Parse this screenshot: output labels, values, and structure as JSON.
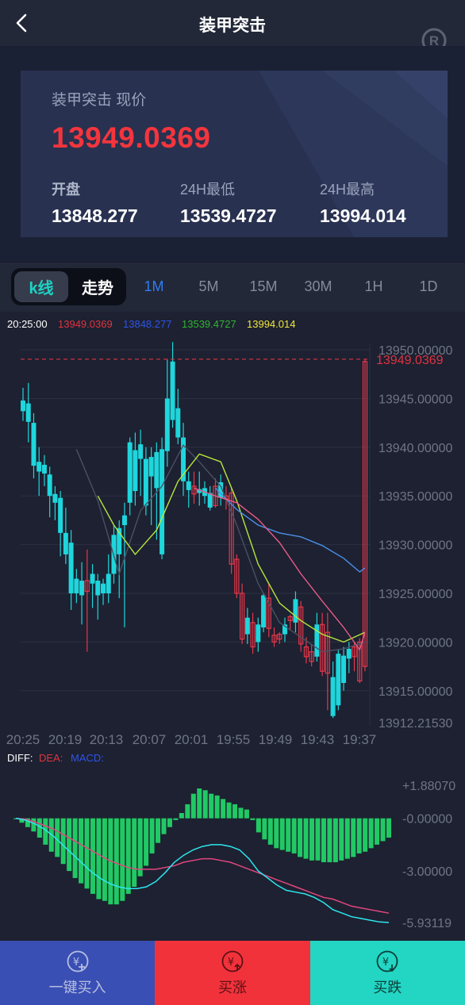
{
  "header": {
    "title": "装甲突击",
    "back_icon": "chevron-left-icon",
    "logo_icon": "registered-mark-icon"
  },
  "quote": {
    "label": "装甲突击 现价",
    "price": "13949.0369",
    "open_label": "开盘",
    "open_value": "13848.277",
    "low_label": "24H最低",
    "low_value": "13539.4727",
    "high_label": "24H最高",
    "high_value": "13994.014"
  },
  "tabs": {
    "kline_label": "k线",
    "trend_label": "走势",
    "periods": [
      "1M",
      "5M",
      "15M",
      "30M",
      "1H",
      "1D"
    ],
    "active_period": "1M"
  },
  "chart_data": {
    "type": "candlestick",
    "legend": {
      "time": "20:25:00",
      "values": [
        "13949.0369",
        "13848.277",
        "13539.4727",
        "13994.014"
      ],
      "colors": [
        "#e03340",
        "#2f54e8",
        "#2fb52f",
        "#f0e63c"
      ]
    },
    "price_axis": [
      "13950.00000",
      "13945.00000",
      "13940.00000",
      "13935.00000",
      "13930.00000",
      "13925.00000",
      "13920.00000",
      "13915.00000",
      "13912.21530"
    ],
    "price_range": [
      13912.2153,
      13950.0
    ],
    "last_price": "13949.0369",
    "time_axis": [
      "20:25",
      "20:19",
      "20:13",
      "20:07",
      "20:01",
      "19:55",
      "19:49",
      "19:43",
      "19:37"
    ],
    "candles": [
      [
        13943.7,
        13944.8,
        13946.1,
        13942.7
      ],
      [
        13942.6,
        13944.5,
        13946.6,
        13940.5
      ],
      [
        13938.1,
        13942.5,
        13943.5,
        13936.8
      ],
      [
        13937.5,
        13938.5,
        13940.0,
        13935.0
      ],
      [
        13937.3,
        13938.2,
        13939.2,
        13936.0
      ],
      [
        13935.0,
        13937.2,
        13938.0,
        13932.8
      ],
      [
        13934.3,
        13935.2,
        13936.0,
        13932.5
      ],
      [
        13931.2,
        13934.8,
        13935.5,
        13928.8
      ],
      [
        13929.0,
        13931.2,
        13933.8,
        13928.0
      ],
      [
        13925.0,
        13930.2,
        13931.5,
        13923.3
      ],
      [
        13925.0,
        13926.5,
        13927.5,
        13924.0
      ],
      [
        13924.8,
        13926.3,
        13928.2,
        13921.8
      ],
      [
        13926.3,
        13925.2,
        13929.5,
        13919.0
      ],
      [
        13926.0,
        13927.0,
        13928.0,
        13923.5
      ],
      [
        13924.8,
        13926.3,
        13927.0,
        13922.3
      ],
      [
        13925.0,
        13926.0,
        13926.5,
        13923.8
      ],
      [
        13925.0,
        13927.0,
        13929.0,
        13924.0
      ],
      [
        13927.0,
        13931.0,
        13932.0,
        13926.0
      ],
      [
        13929.0,
        13931.7,
        13932.5,
        13924.5
      ],
      [
        13932.0,
        13933.0,
        13934.3,
        13921.5
      ],
      [
        13934.3,
        13940.5,
        13941.0,
        13933.0
      ],
      [
        13935.5,
        13939.7,
        13941.5,
        13934.0
      ],
      [
        13938.8,
        13940.3,
        13941.8,
        13935.0
      ],
      [
        13934.0,
        13938.8,
        13940.0,
        13933.0
      ],
      [
        13937.0,
        13939.0,
        13940.0,
        13932.0
      ],
      [
        13935.8,
        13939.5,
        13940.5,
        13930.5
      ],
      [
        13929.0,
        13939.8,
        13941.0,
        13928.5
      ],
      [
        13939.6,
        13945.0,
        13949.0,
        13938.0
      ],
      [
        13942.8,
        13948.8,
        13950.8,
        13942.0
      ],
      [
        13941.0,
        13944.0,
        13946.0,
        13940.3
      ],
      [
        13936.5,
        13941.0,
        13942.5,
        13935.0
      ],
      [
        13935.6,
        13936.5,
        13937.5,
        13933.8
      ],
      [
        13936.0,
        13935.2,
        13937.5,
        13934.2
      ],
      [
        13935.3,
        13935.7,
        13937.5,
        13934.0
      ],
      [
        13935.0,
        13935.8,
        13936.5,
        13934.2
      ],
      [
        13933.8,
        13935.3,
        13936.0,
        13933.5
      ],
      [
        13936.0,
        13934.0,
        13936.8,
        13933.8
      ],
      [
        13934.8,
        13936.4,
        13937.2,
        13934.0
      ],
      [
        13935.0,
        13934.7,
        13936.0,
        13933.6
      ],
      [
        13935.3,
        13928.0,
        13935.8,
        13927.0
      ],
      [
        13928.5,
        13925.0,
        13929.0,
        13924.5
      ],
      [
        13925.0,
        13920.3,
        13926.0,
        13919.8
      ],
      [
        13920.8,
        13922.5,
        13923.5,
        13919.8
      ],
      [
        13922.0,
        13919.5,
        13923.0,
        13918.8
      ],
      [
        13920.0,
        13921.8,
        13922.5,
        13919.0
      ],
      [
        13921.5,
        13924.8,
        13925.0,
        13921.0
      ],
      [
        13924.5,
        13921.4,
        13926.0,
        13920.5
      ],
      [
        13920.7,
        13920.0,
        13921.5,
        13919.5
      ],
      [
        13920.8,
        13920.3,
        13921.0,
        13919.8
      ],
      [
        13920.8,
        13921.8,
        13922.5,
        13920.0
      ],
      [
        13922.6,
        13922.2,
        13922.8,
        13921.2
      ],
      [
        13922.0,
        13924.4,
        13925.2,
        13921.0
      ],
      [
        13923.6,
        13919.8,
        13924.2,
        13919.0
      ],
      [
        13919.5,
        13918.5,
        13920.5,
        13917.8
      ],
      [
        13919.0,
        13918.0,
        13919.8,
        13917.5
      ],
      [
        13918.5,
        13921.8,
        13923.0,
        13918.0
      ],
      [
        13921.8,
        13917.0,
        13923.0,
        13916.5
      ],
      [
        13921.0,
        13916.8,
        13923.0,
        13913.0
      ],
      [
        13912.4,
        13916.4,
        13918.0,
        13912.2
      ],
      [
        13913.5,
        13918.8,
        13919.2,
        13913.0
      ],
      [
        13915.8,
        13918.6,
        13919.5,
        13915.0
      ],
      [
        13918.3,
        13919.3,
        13920.0,
        13916.8
      ],
      [
        13919.5,
        13918.5,
        13920.0,
        13917.0
      ],
      [
        13920.0,
        13916.0,
        13920.4,
        13915.8
      ],
      [
        13948.8,
        13917.5,
        13949.0,
        13917.0
      ]
    ],
    "ma_lines": {
      "white": [
        [
          26,
          70
        ],
        [
          31,
          56
        ],
        [
          20,
          30
        ],
        [
          13,
          15
        ],
        [
          10,
          7
        ],
        [
          9,
          4
        ],
        [
          10,
          3
        ],
        [
          12,
          3
        ]
      ],
      "yellow": [
        [
          36,
          46
        ],
        [
          33,
          37
        ],
        [
          30,
          28
        ],
        [
          29,
          23
        ],
        [
          32,
          18
        ],
        [
          37,
          11
        ],
        [
          38,
          8
        ],
        [
          37,
          5
        ],
        [
          35,
          4
        ],
        [
          31,
          3
        ],
        [
          27,
          2
        ],
        [
          22,
          1
        ],
        [
          19,
          0
        ]
      ],
      "blue": [
        [
          28,
          39
        ],
        [
          34,
          23
        ],
        [
          32,
          17
        ],
        [
          29,
          9
        ],
        [
          27,
          4
        ]
      ],
      "pink": [
        [
          20,
          31
        ],
        [
          26,
          22
        ],
        [
          31,
          15
        ],
        [
          34,
          9
        ],
        [
          33,
          4
        ],
        [
          27,
          1
        ]
      ]
    },
    "macd": {
      "legend": [
        "DIFF:",
        "DEA:",
        "MACD:"
      ],
      "legend_colors": [
        "#ffffff",
        "#e03340",
        "#2f54e8"
      ],
      "axis": [
        "+1.88070",
        "-0.00000",
        "-3.00000",
        "-5.93119"
      ],
      "range": [
        -5.93119,
        1.8807
      ],
      "histogram": [
        -0.05,
        -0.25,
        -0.5,
        -0.75,
        -1.1,
        -1.5,
        -1.9,
        -2.2,
        -2.6,
        -3.0,
        -3.4,
        -3.7,
        -4.0,
        -4.3,
        -4.6,
        -4.7,
        -4.9,
        -4.9,
        -4.7,
        -4.3,
        -3.9,
        -3.3,
        -2.7,
        -2.0,
        -1.4,
        -0.9,
        -0.5,
        -0.1,
        0.3,
        0.8,
        1.4,
        1.7,
        1.6,
        1.4,
        1.3,
        1.1,
        0.9,
        0.8,
        0.6,
        0.5,
        -0.1,
        -0.8,
        -1.2,
        -1.5,
        -1.7,
        -1.8,
        -1.9,
        -2.0,
        -2.2,
        -2.3,
        -2.4,
        -2.4,
        -2.5,
        -2.5,
        -2.5,
        -2.4,
        -2.3,
        -2.2,
        -2.0,
        -1.9,
        -1.7,
        -1.5,
        -1.3,
        -1.1
      ],
      "diff": [
        0.0,
        -0.1,
        -0.3,
        -0.6,
        -1.0,
        -1.5,
        -2.0,
        -2.5,
        -3.0,
        -3.4,
        -3.7,
        -3.9,
        -4.0,
        -4.0,
        -3.9,
        -3.6,
        -3.1,
        -2.5,
        -2.1,
        -1.8,
        -1.6,
        -1.5,
        -1.5,
        -1.6,
        -1.8,
        -2.3,
        -3.0,
        -3.4,
        -3.8,
        -4.1,
        -4.2,
        -4.3,
        -4.5,
        -4.8,
        -5.2,
        -5.4,
        -5.6,
        -5.7,
        -5.8,
        -5.9,
        -5.93
      ],
      "dea": [
        0.0,
        -0.05,
        -0.2,
        -0.4,
        -0.6,
        -0.9,
        -1.2,
        -1.5,
        -1.8,
        -2.1,
        -2.4,
        -2.6,
        -2.8,
        -2.9,
        -2.9,
        -2.9,
        -2.8,
        -2.7,
        -2.5,
        -2.4,
        -2.3,
        -2.3,
        -2.4,
        -2.5,
        -2.7,
        -2.9,
        -3.1,
        -3.3,
        -3.5,
        -3.7,
        -3.9,
        -4.1,
        -4.3,
        -4.5,
        -4.6,
        -4.8,
        -5.0,
        -5.1,
        -5.2,
        -5.3,
        -5.4
      ]
    }
  },
  "actions": {
    "buy_label": "一键买入",
    "up_label": "买涨",
    "down_label": "买跌",
    "colors": {
      "buy": "#3a4fb4",
      "up": "#f2323b",
      "down": "#22d6c3"
    }
  }
}
